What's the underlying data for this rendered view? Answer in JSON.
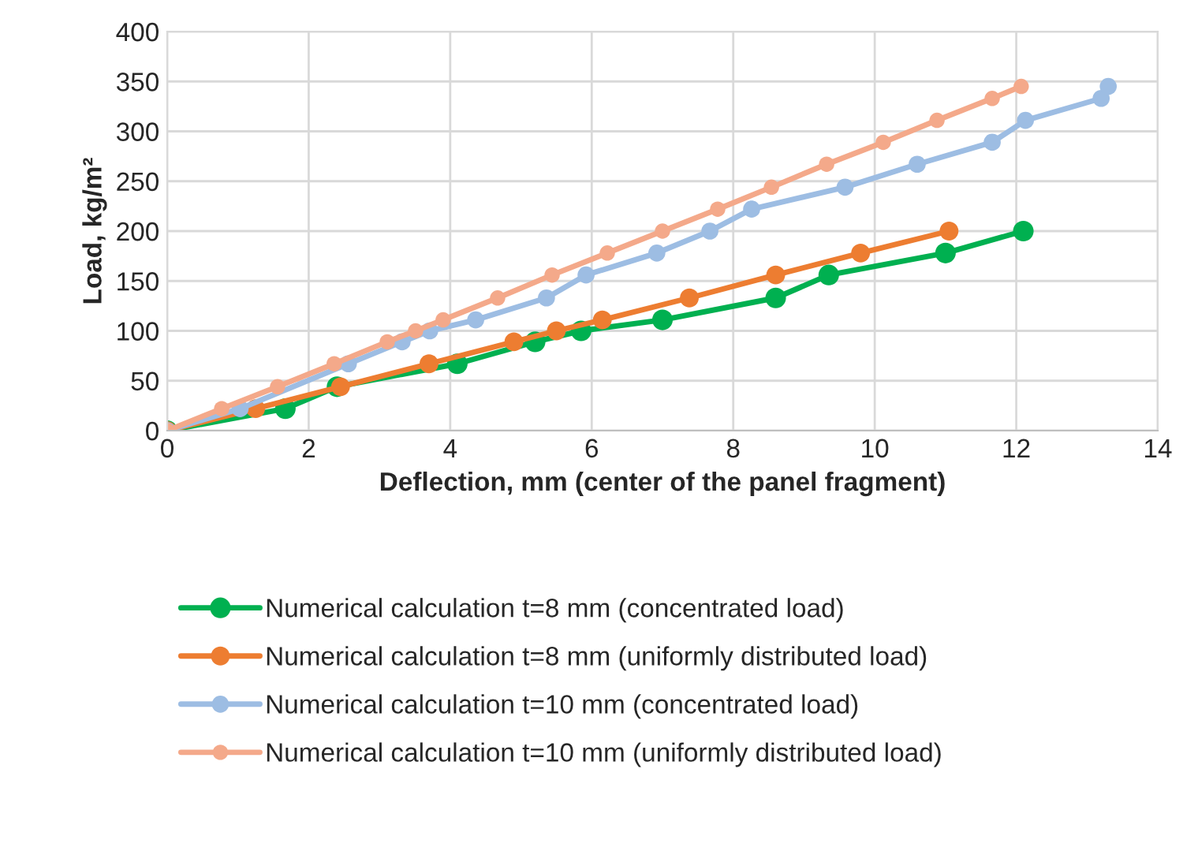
{
  "chart_data": {
    "type": "line",
    "xlabel": "Deflection, mm (center of the panel fragment)",
    "ylabel": "Load, kg/m²",
    "xlim": [
      0,
      14
    ],
    "xticks": [
      0,
      2,
      4,
      6,
      8,
      10,
      12,
      14
    ],
    "ylim": [
      0,
      400
    ],
    "yticks": [
      0,
      50,
      100,
      150,
      200,
      250,
      300,
      350,
      400
    ],
    "grid": true,
    "legend": "bottom",
    "marker": "circle",
    "line_style": "solid",
    "series": [
      {
        "name": "Numerical calculation t=8 mm (concentrated load)",
        "color": "#00b050",
        "x": [
          0,
          1.67,
          2.4,
          4.1,
          5.2,
          5.85,
          7.0,
          8.6,
          9.35,
          11.0,
          12.1
        ],
        "values": [
          0,
          22,
          44,
          67,
          89,
          100,
          111,
          133,
          156,
          178,
          200
        ]
      },
      {
        "name": "Numerical calculation t=8 mm (uniformly distributed load)",
        "color": "#ed7d31",
        "x": [
          0,
          1.25,
          2.45,
          3.7,
          4.9,
          5.5,
          6.15,
          7.38,
          8.6,
          9.8,
          11.05
        ],
        "values": [
          0,
          22,
          44,
          67,
          89,
          100,
          111,
          133,
          156,
          178,
          200
        ]
      },
      {
        "name": "Numerical calculation t=10 mm (concentrated load)",
        "color": "#9dbde3",
        "x": [
          0,
          1.03,
          2.56,
          3.32,
          3.71,
          4.36,
          5.36,
          5.92,
          6.92,
          7.67,
          8.26,
          9.58,
          10.6,
          11.66,
          12.13,
          13.2,
          13.3
        ],
        "values": [
          0,
          22,
          67,
          89,
          100,
          111,
          133,
          156,
          178,
          200,
          222,
          244,
          267,
          289,
          311,
          333,
          345
        ]
      },
      {
        "name": "Numerical calculation t=10 mm (uniformly distributed load)",
        "color": "#f4a98a",
        "x": [
          0,
          0.77,
          1.56,
          2.36,
          3.11,
          3.51,
          3.9,
          4.67,
          5.44,
          6.22,
          7.0,
          7.78,
          8.54,
          9.32,
          10.12,
          10.88,
          11.66,
          12.07
        ],
        "values": [
          0,
          22,
          44,
          67,
          89,
          100,
          111,
          133,
          156,
          178,
          200,
          222,
          244,
          267,
          289,
          311,
          333,
          345
        ]
      }
    ]
  }
}
